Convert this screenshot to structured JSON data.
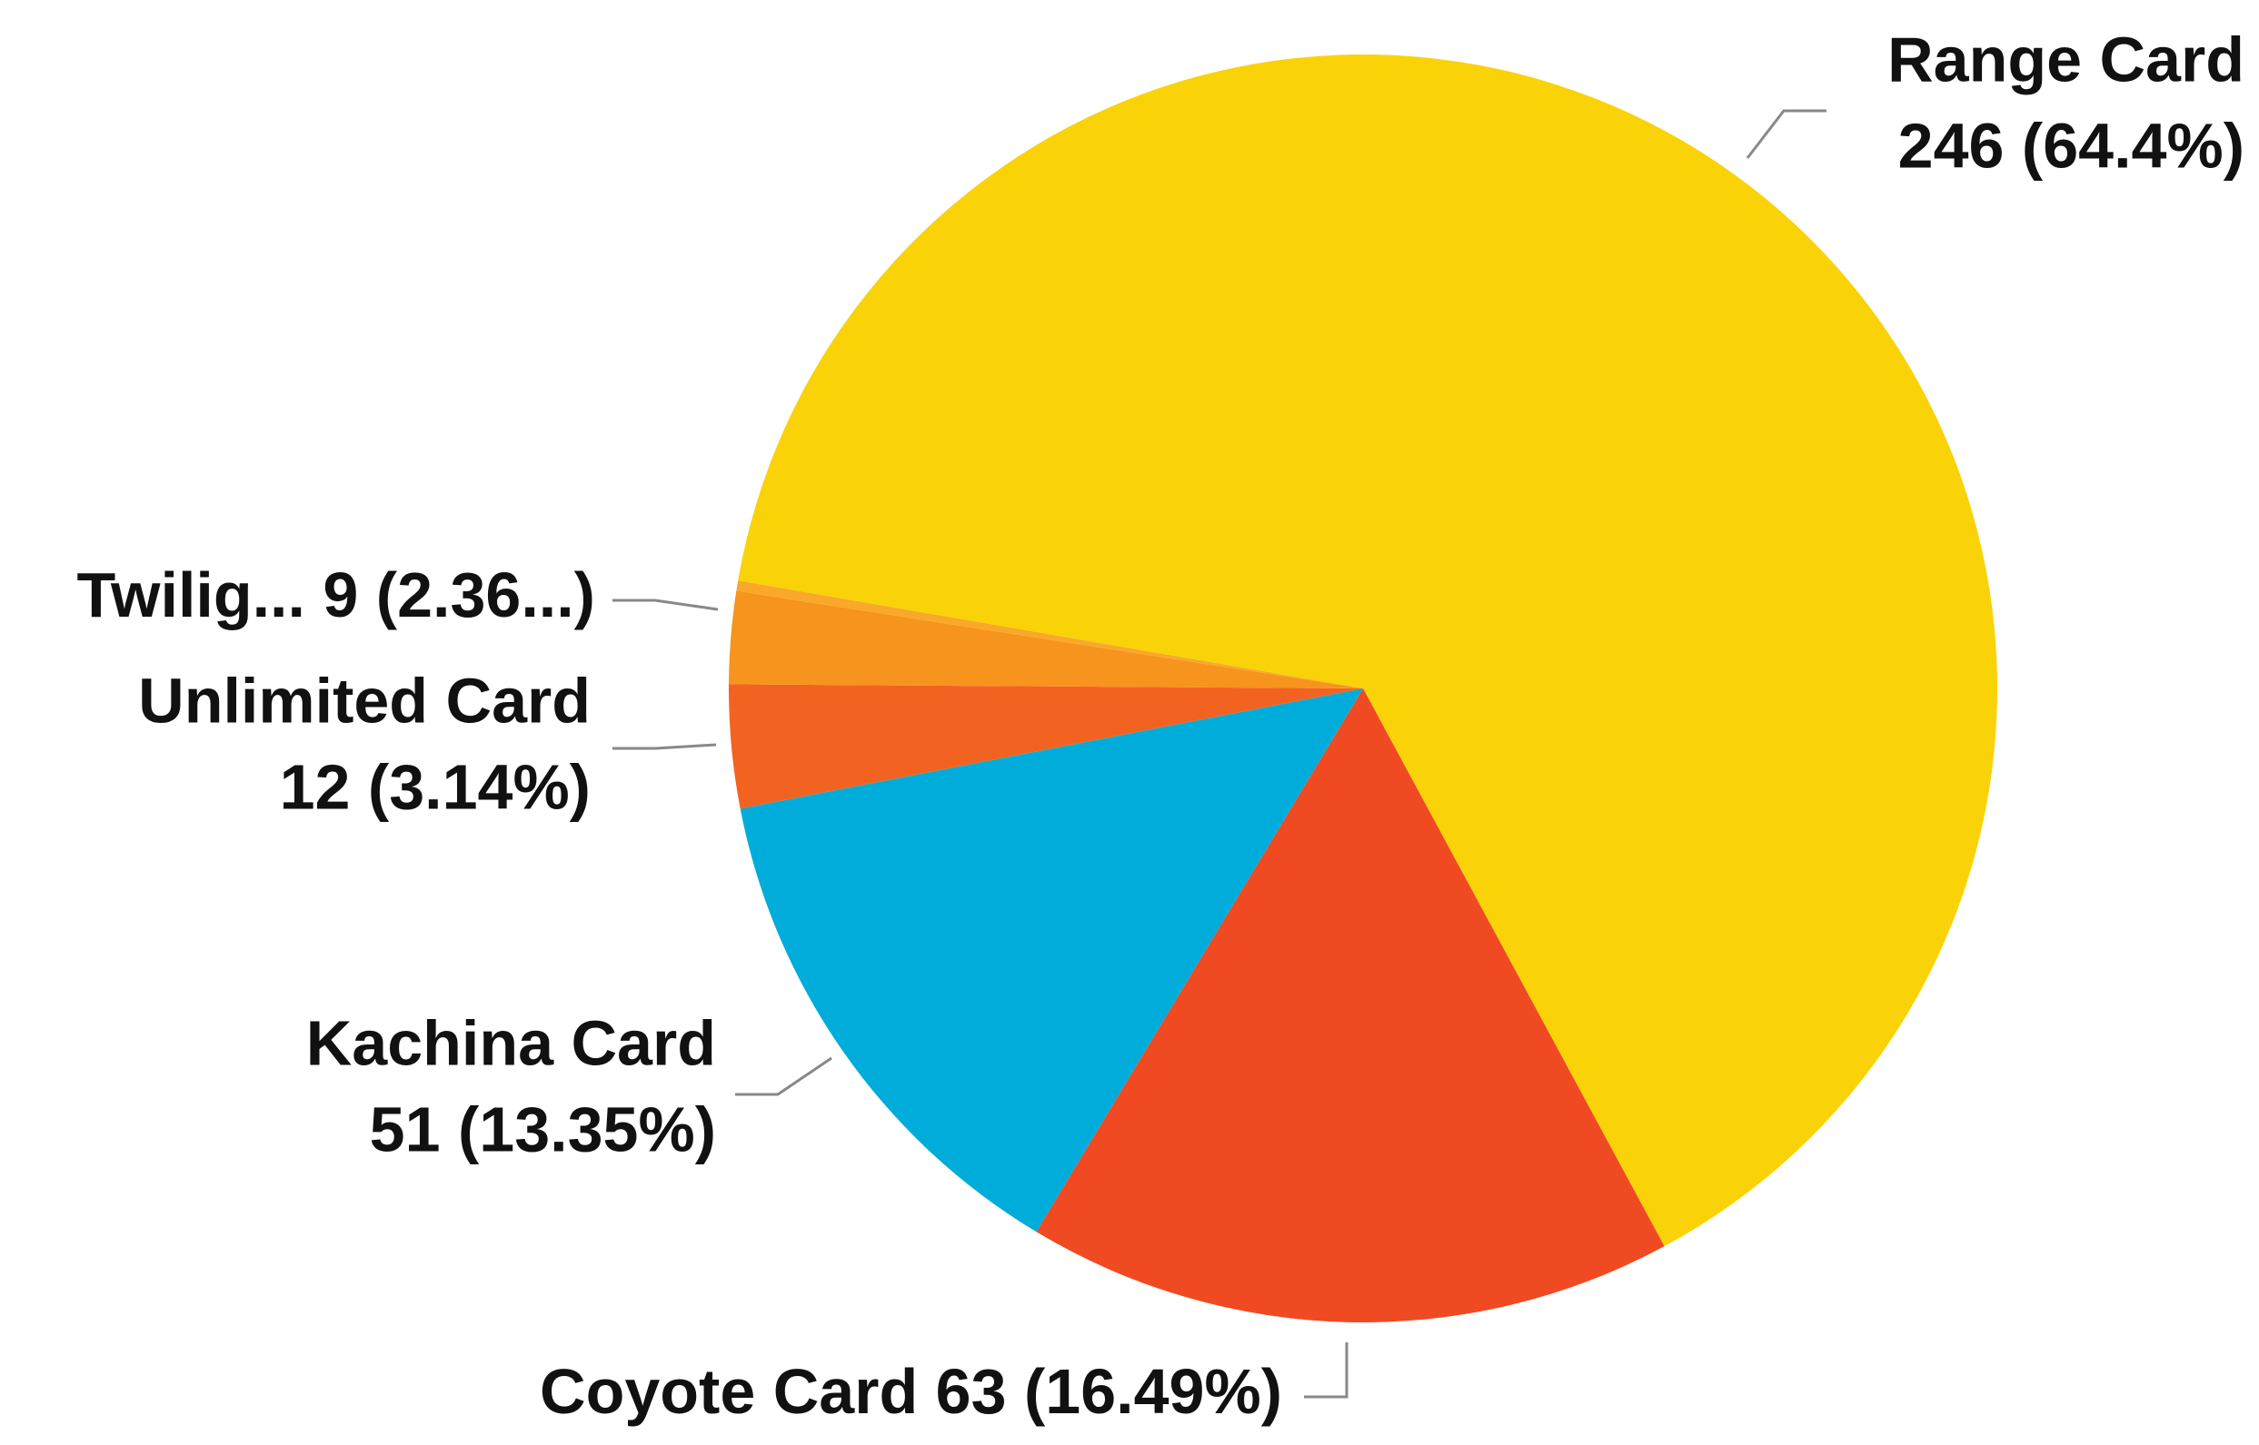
{
  "chart_data": {
    "type": "pie",
    "categories": [
      "Range Card",
      "Coyote Card",
      "Kachina Card",
      "Unlimited Card",
      "Twilig...",
      null
    ],
    "values": [
      246,
      63,
      51,
      12,
      9,
      1
    ],
    "value_labels": [
      "246 (64.4%)",
      "63 (16.49%)",
      "51 (13.35%)",
      "12 (3.14%)",
      "9 (2.36...)",
      null
    ],
    "colors": [
      "#fad208",
      "#f04a23",
      "#00acda",
      "#f26322",
      "#f7941d",
      "#f9a829"
    ]
  }
}
